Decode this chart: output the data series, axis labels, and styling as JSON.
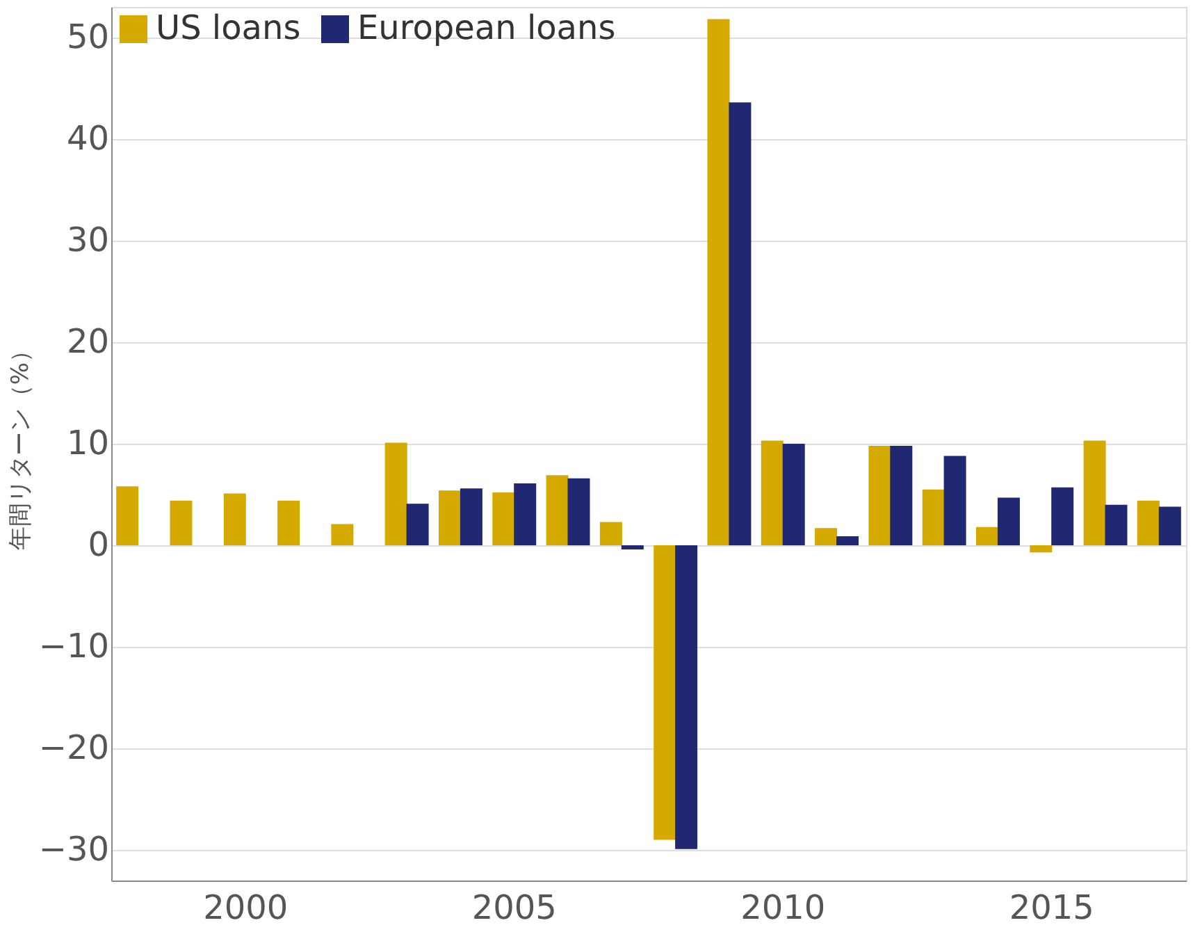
{
  "chart_data": {
    "type": "bar",
    "ylabel": "年間リターン（%）",
    "categories": [
      null,
      null,
      "2000",
      null,
      null,
      null,
      null,
      "2005",
      null,
      null,
      null,
      null,
      "2010",
      null,
      null,
      null,
      null,
      "2015",
      null,
      null
    ],
    "series": [
      {
        "name": "US loans",
        "color": "#d4a900",
        "values": [
          5.8,
          4.4,
          5.1,
          4.4,
          2.1,
          10.1,
          5.4,
          5.2,
          6.9,
          2.3,
          -29,
          51.8,
          10.3,
          1.7,
          9.8,
          5.5,
          1.8,
          -0.7,
          10.3,
          4.4
        ]
      },
      {
        "name": "European loans",
        "color": "#1f2870",
        "values": [
          null,
          null,
          null,
          null,
          null,
          4.1,
          5.6,
          6.1,
          6.6,
          -0.4,
          -29.9,
          43.6,
          10.0,
          0.9,
          9.8,
          8.8,
          4.7,
          5.7,
          4.0,
          3.8
        ]
      }
    ],
    "ylim": [
      -33,
      53
    ],
    "yticks": [
      -30,
      -20,
      -10,
      0,
      10,
      20,
      30,
      40,
      50
    ],
    "grid": "y",
    "legend": "top left"
  }
}
